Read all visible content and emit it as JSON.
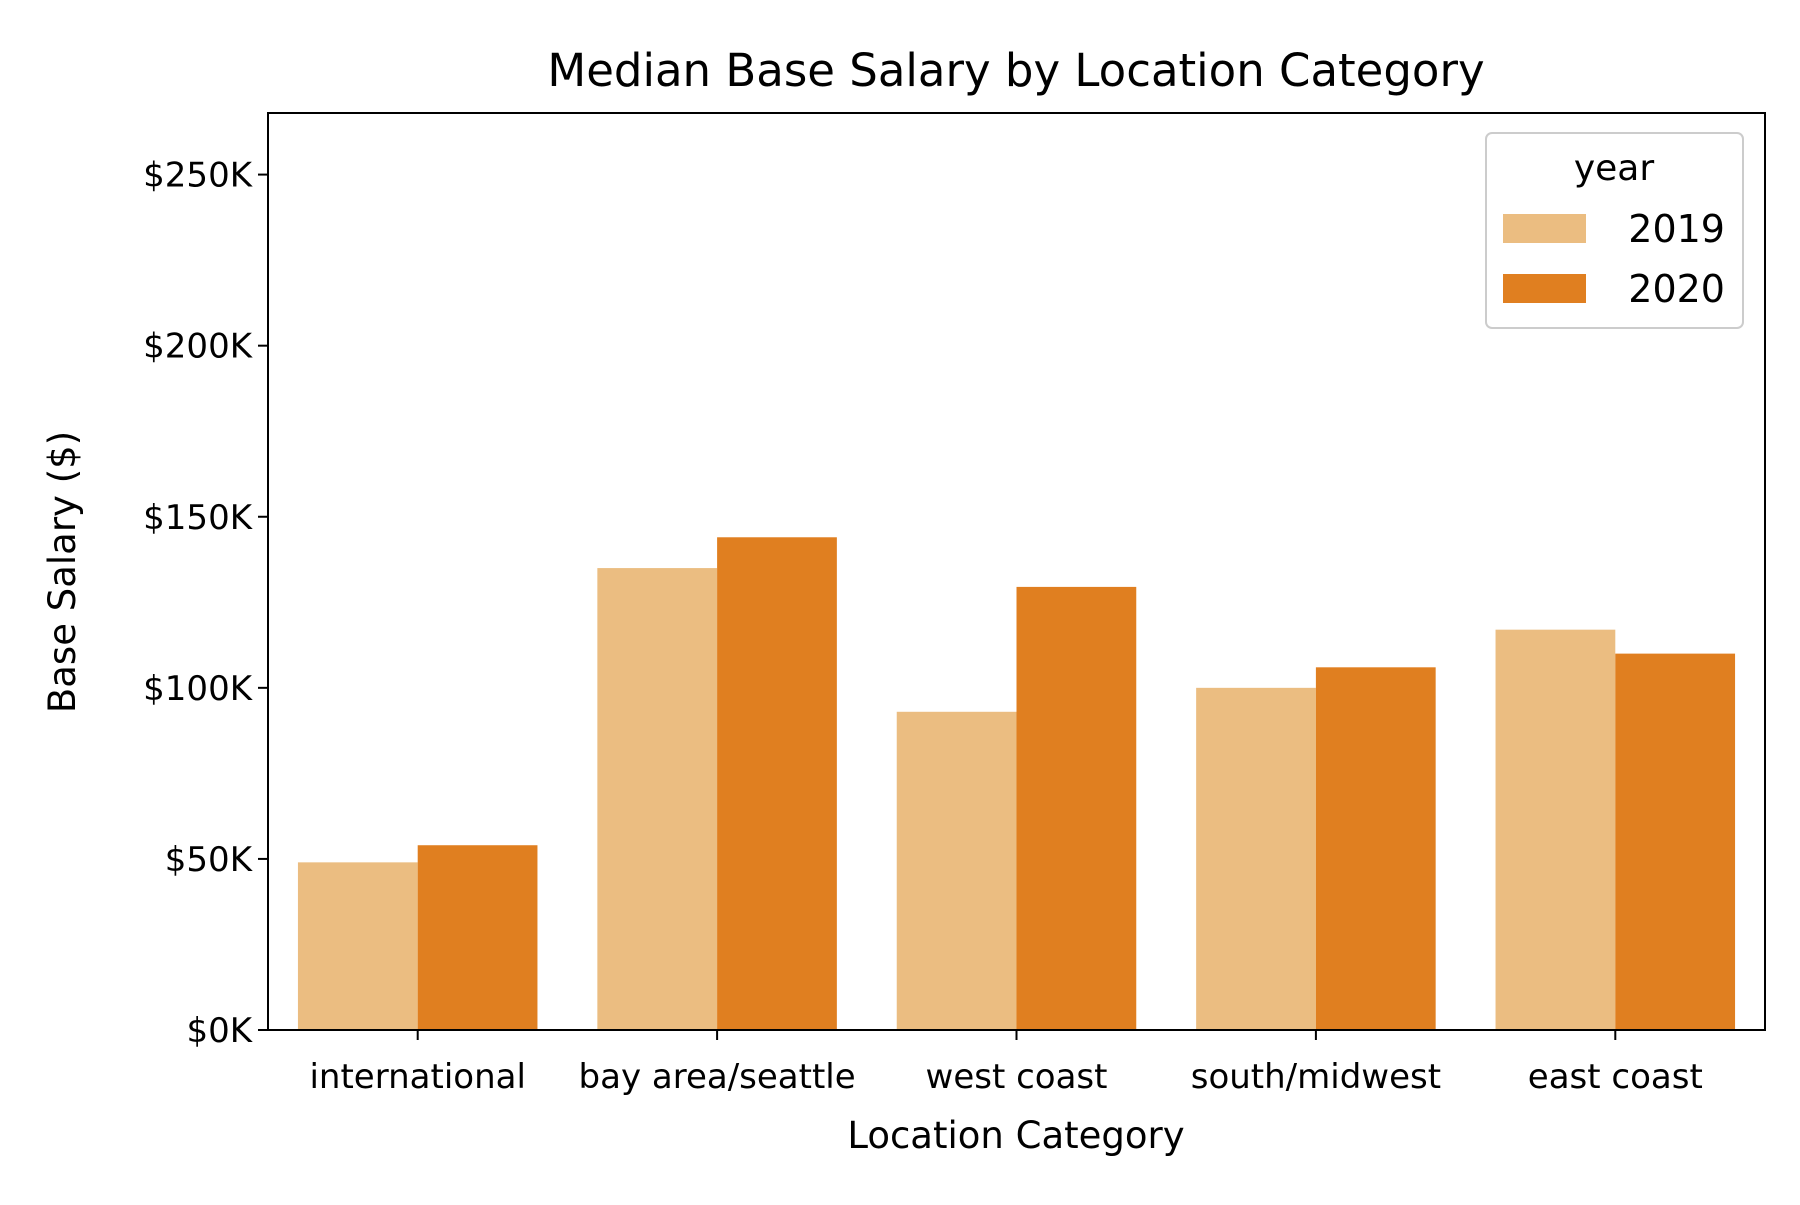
{
  "chart_data": {
    "type": "bar",
    "title": "Median Base Salary by Location Category",
    "xlabel": "Location Category",
    "ylabel": "Base Salary ($)",
    "categories": [
      "international",
      "bay area/seattle",
      "west coast",
      "south/midwest",
      "east coast"
    ],
    "series": [
      {
        "name": "2019",
        "color": "#ebbd81",
        "values": [
          49000,
          135000,
          93000,
          100000,
          117000
        ]
      },
      {
        "name": "2020",
        "color": "#e07f20",
        "values": [
          54000,
          144000,
          129500,
          106000,
          110000
        ]
      }
    ],
    "ylim": [
      0,
      268000
    ],
    "yticks": [
      0,
      50000,
      100000,
      150000,
      200000,
      250000
    ],
    "ytick_labels": [
      "$0K",
      "$50K",
      "$100K",
      "$150K",
      "$200K",
      "$250K"
    ],
    "grid": false,
    "legend": {
      "title": "year",
      "placement": "top-right"
    }
  }
}
